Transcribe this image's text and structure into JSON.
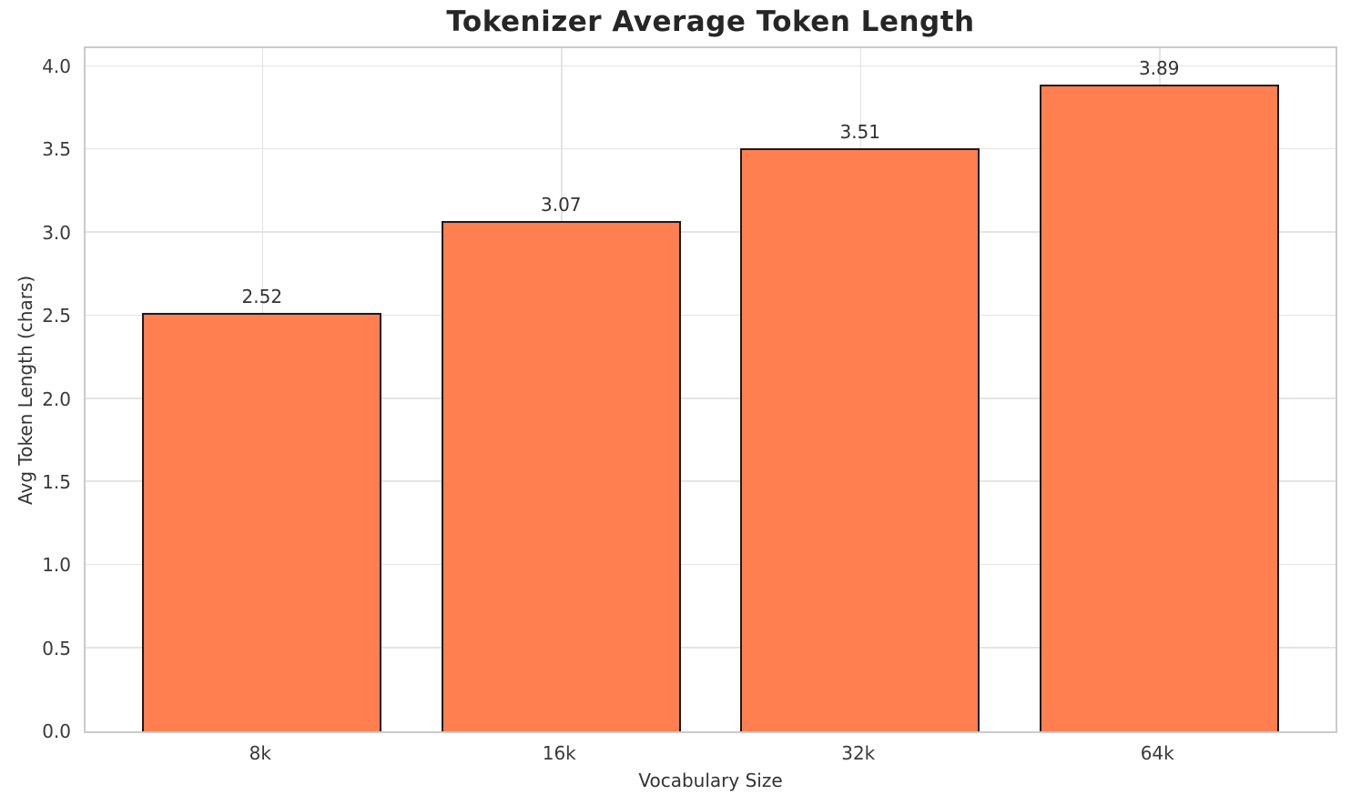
{
  "chart_data": {
    "type": "bar",
    "title": "Tokenizer Average Token Length",
    "xlabel": "Vocabulary Size",
    "ylabel": "Avg Token Length (chars)",
    "categories": [
      "8k",
      "16k",
      "32k",
      "64k"
    ],
    "values": [
      2.52,
      3.07,
      3.51,
      3.89
    ],
    "value_labels": [
      "2.52",
      "3.07",
      "3.51",
      "3.89"
    ],
    "yticks": [
      0.0,
      0.5,
      1.0,
      1.5,
      2.0,
      2.5,
      3.0,
      3.5,
      4.0
    ],
    "ytick_labels": [
      "0.0",
      "0.5",
      "1.0",
      "1.5",
      "2.0",
      "2.5",
      "3.0",
      "3.5",
      "4.0"
    ],
    "ylim": [
      0,
      4.11
    ],
    "xlim": [
      -0.59,
      3.59
    ],
    "bar_width": 0.8,
    "grid": true,
    "legend": "none",
    "bar_color": "#ff7f50",
    "bar_edge_color": "#1a1a1a"
  },
  "colors": {
    "title": "#262626",
    "tick_label": "#3a3a3a",
    "axis_label": "#333333",
    "gridline": "#e4e4e4",
    "spine": "#cbcbcb",
    "background": "#ffffff"
  }
}
